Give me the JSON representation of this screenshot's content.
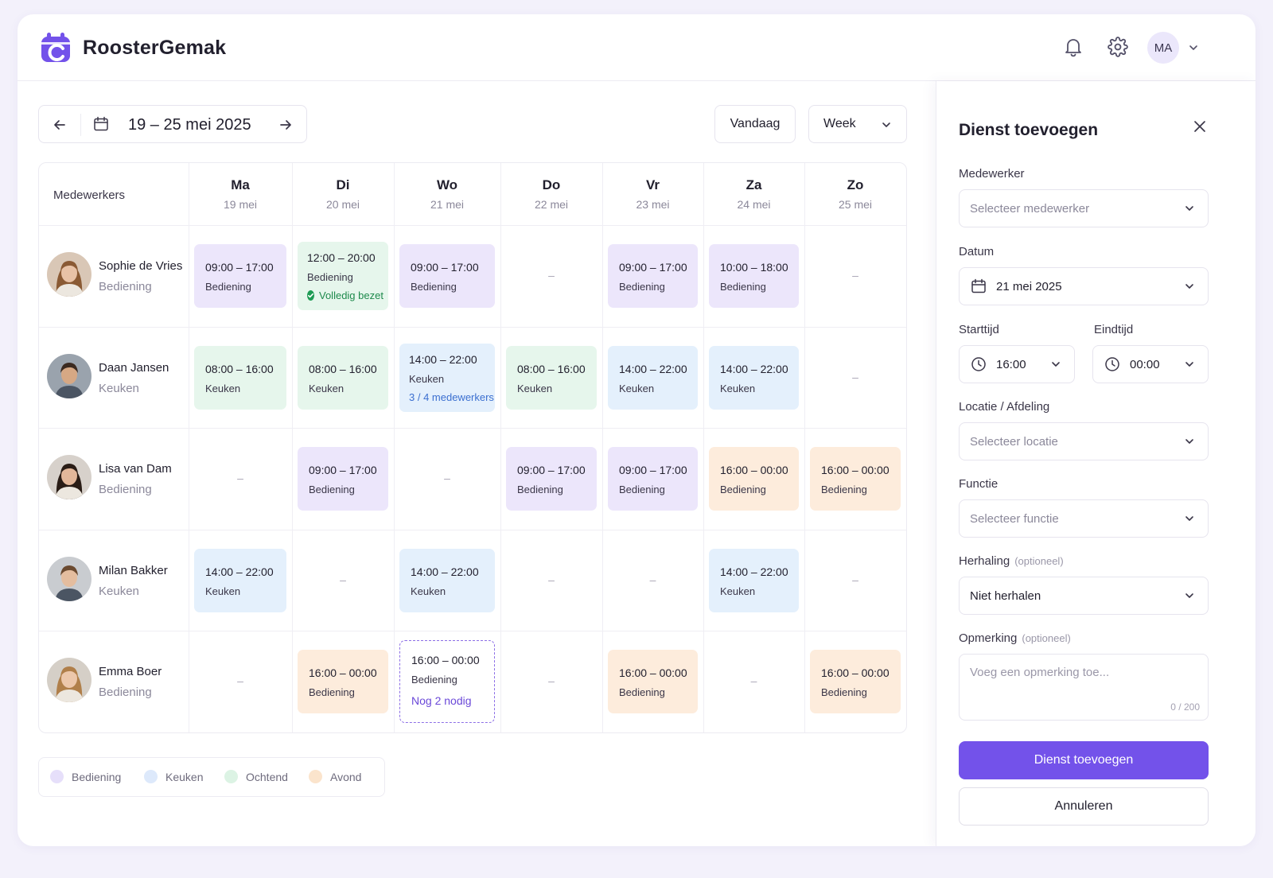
{
  "app": {
    "title": "RoosterGemak",
    "user_initials": "MA"
  },
  "toolbar": {
    "date_range": "19 – 25 mei 2025",
    "today_label": "Vandaag",
    "view_label": "Week"
  },
  "grid": {
    "employees_header": "Medewerkers",
    "days": [
      {
        "name": "Ma",
        "date": "19 mei"
      },
      {
        "name": "Di",
        "date": "20 mei"
      },
      {
        "name": "Wo",
        "date": "21 mei"
      },
      {
        "name": "Do",
        "date": "22 mei"
      },
      {
        "name": "Vr",
        "date": "23 mei"
      },
      {
        "name": "Za",
        "date": "24 mei"
      },
      {
        "name": "Zo",
        "date": "25 mei"
      }
    ],
    "empty_mark": "–",
    "employees": [
      {
        "name": "Sophie de Vries",
        "role": "Bediening",
        "shifts": [
          {
            "time": "09:00 – 17:00",
            "role": "Bediening"
          },
          {
            "time": "12:00 – 20:00",
            "role": "Bediening",
            "note": "Volledig bezet"
          },
          {
            "time": "09:00 – 17:00",
            "role": "Bediening"
          },
          null,
          {
            "time": "09:00 – 17:00",
            "role": "Bediening"
          },
          {
            "time": "10:00 – 18:00",
            "role": "Bediening"
          },
          null
        ]
      },
      {
        "name": "Daan Jansen",
        "role": "Keuken",
        "shifts": [
          {
            "time": "08:00 – 16:00",
            "role": "Keuken"
          },
          {
            "time": "08:00 – 16:00",
            "role": "Keuken"
          },
          {
            "time": "14:00 – 22:00",
            "role": "Keuken",
            "note": "3 / 4 medewerkers"
          },
          {
            "time": "08:00 – 16:00",
            "role": "Keuken"
          },
          {
            "time": "14:00 – 22:00",
            "role": "Keuken"
          },
          {
            "time": "14:00 – 22:00",
            "role": "Keuken"
          },
          null
        ]
      },
      {
        "name": "Lisa van Dam",
        "role": "Bediening",
        "shifts": [
          null,
          {
            "time": "09:00 – 17:00",
            "role": "Bediening"
          },
          null,
          {
            "time": "09:00 – 17:00",
            "role": "Bediening"
          },
          {
            "time": "09:00 – 17:00",
            "role": "Bediening"
          },
          {
            "time": "16:00 – 00:00",
            "role": "Bediening"
          },
          {
            "time": "16:00 – 00:00",
            "role": "Bediening"
          }
        ]
      },
      {
        "name": "Milan Bakker",
        "role": "Keuken",
        "shifts": [
          {
            "time": "14:00 – 22:00",
            "role": "Keuken"
          },
          null,
          {
            "time": "14:00 – 22:00",
            "role": "Keuken"
          },
          null,
          null,
          {
            "time": "14:00 – 22:00",
            "role": "Keuken"
          },
          null
        ]
      },
      {
        "name": "Emma Boer",
        "role": "Bediening",
        "shifts": [
          null,
          {
            "time": "16:00 – 00:00",
            "role": "Bediening"
          },
          {
            "time": "16:00 – 00:00",
            "role": "Bediening",
            "note": "Nog 2 nodig"
          },
          null,
          {
            "time": "16:00 – 00:00",
            "role": "Bediening"
          },
          null,
          {
            "time": "16:00 – 00:00",
            "role": "Bediening"
          }
        ]
      }
    ]
  },
  "legend": [
    {
      "label": "Bediening",
      "color": "#e6dffa"
    },
    {
      "label": "Keuken",
      "color": "#dde9fb"
    },
    {
      "label": "Ochtend",
      "color": "#dcf3e4"
    },
    {
      "label": "Avond",
      "color": "#fbe4cc"
    }
  ],
  "colors": {
    "accent": "#7352ea",
    "bediening": "#ece6fb",
    "keuken": "#e4f0fc",
    "ochtend": "#e6f6ec",
    "avond": "#fdecdc",
    "success": "#1e9b54"
  },
  "panel": {
    "title": "Dienst toevoegen",
    "employee_label": "Medewerker",
    "employee_placeholder": "Selecteer medewerker",
    "date_label": "Datum",
    "date_value": "21 mei 2025",
    "start_label": "Starttijd",
    "start_value": "16:00",
    "end_label": "Eindtijd",
    "end_value": "00:00",
    "location_label": "Locatie / Afdeling",
    "location_placeholder": "Selecteer locatie",
    "function_label": "Functie",
    "function_placeholder": "Selecteer functie",
    "repeat_label": "Herhaling",
    "repeat_optional": "(optioneel)",
    "repeat_value": "Niet herhalen",
    "remark_label": "Opmerking",
    "remark_optional": "(optioneel)",
    "remark_placeholder": "Voeg een opmerking toe...",
    "remark_counter": "0 / 200",
    "submit_label": "Dienst toevoegen",
    "cancel_label": "Annuleren"
  }
}
